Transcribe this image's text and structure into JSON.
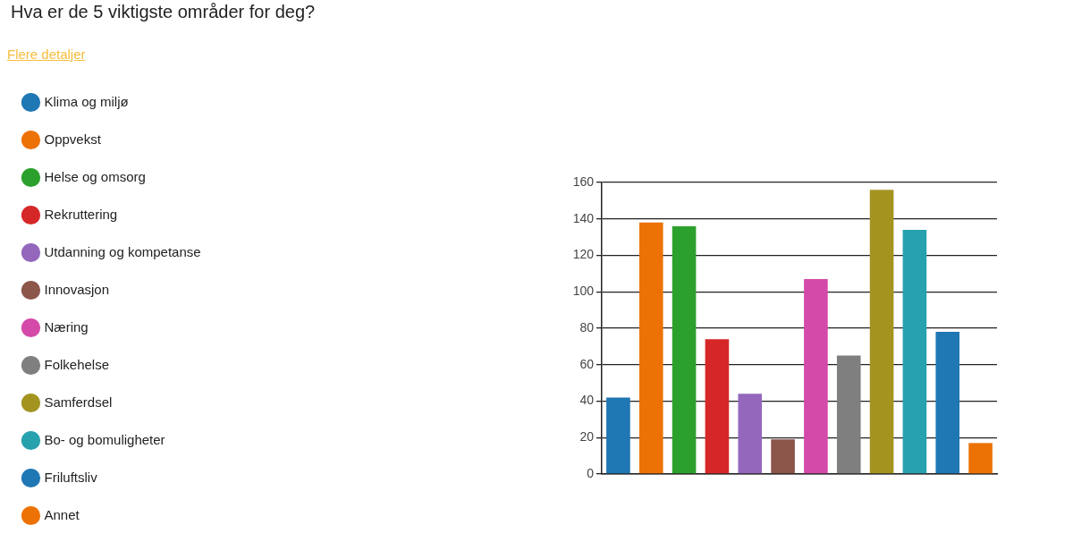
{
  "chart_data": {
    "type": "bar",
    "title": "Hva er de 5 viktigste områder for deg?",
    "annotations": [
      "Flere detaljer"
    ],
    "categories": [
      null,
      null,
      null,
      null,
      null,
      null,
      null,
      null,
      null,
      null,
      null,
      null
    ],
    "series": [
      {
        "name": "Klima og miljø",
        "color": "#1f77b4",
        "values": [
          42,
          null,
          null,
          null,
          null,
          null,
          null,
          null,
          null,
          null,
          null,
          null
        ]
      },
      {
        "name": "Oppvekst",
        "color": "#ec7206",
        "values": [
          null,
          138,
          null,
          null,
          null,
          null,
          null,
          null,
          null,
          null,
          null,
          null
        ]
      },
      {
        "name": "Helse og omsorg",
        "color": "#2ca02c",
        "values": [
          null,
          null,
          136,
          null,
          null,
          null,
          null,
          null,
          null,
          null,
          null,
          null
        ]
      },
      {
        "name": "Rekruttering",
        "color": "#d62728",
        "values": [
          null,
          null,
          null,
          74,
          null,
          null,
          null,
          null,
          null,
          null,
          null,
          null
        ]
      },
      {
        "name": "Utdanning og kompetanse",
        "color": "#9467bd",
        "values": [
          null,
          null,
          null,
          null,
          44,
          null,
          null,
          null,
          null,
          null,
          null,
          null
        ]
      },
      {
        "name": "Innovasjon",
        "color": "#8c564b",
        "values": [
          null,
          null,
          null,
          null,
          null,
          19,
          null,
          null,
          null,
          null,
          null,
          null
        ]
      },
      {
        "name": "Næring",
        "color": "#d44aa8",
        "values": [
          null,
          null,
          null,
          null,
          null,
          null,
          107,
          null,
          null,
          null,
          null,
          null
        ]
      },
      {
        "name": "Folkehelse",
        "color": "#7f7f7f",
        "values": [
          null,
          null,
          null,
          null,
          null,
          null,
          null,
          65,
          null,
          null,
          null,
          null
        ]
      },
      {
        "name": "Samferdsel",
        "color": "#a39420",
        "values": [
          null,
          null,
          null,
          null,
          null,
          null,
          null,
          null,
          156,
          null,
          null,
          null
        ]
      },
      {
        "name": "Bo- og bomuligheter",
        "color": "#27a1ad",
        "values": [
          null,
          null,
          null,
          null,
          null,
          null,
          null,
          null,
          null,
          134,
          null,
          null
        ]
      },
      {
        "name": "Friluftsliv",
        "color": "#1f77b4",
        "values": [
          null,
          null,
          null,
          null,
          null,
          null,
          null,
          null,
          null,
          null,
          78,
          null
        ]
      },
      {
        "name": "Annet",
        "color": "#ec7206",
        "values": [
          null,
          null,
          null,
          null,
          null,
          null,
          null,
          null,
          null,
          null,
          null,
          17
        ]
      }
    ],
    "ylim": [
      0,
      160
    ],
    "yticks": [
      0,
      20,
      40,
      60,
      80,
      100,
      120,
      140,
      160
    ],
    "grid": "y",
    "legend": "left",
    "tick_labels": "y"
  }
}
